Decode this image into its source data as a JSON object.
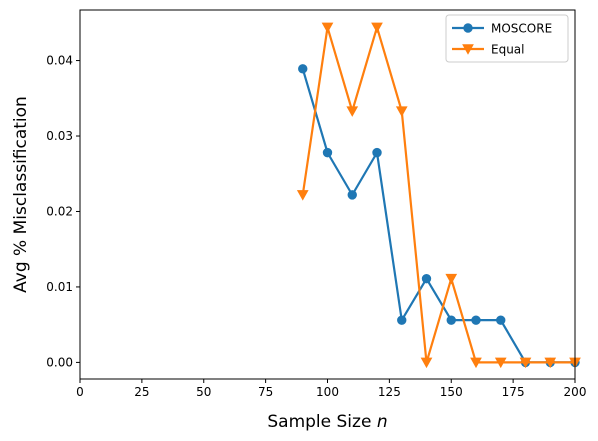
{
  "chart_data": {
    "type": "line",
    "xlabel": "Sample Size",
    "xlabel_italic": "n",
    "ylabel": "Avg % Misclassification",
    "xlim": [
      0,
      200
    ],
    "ylim": [
      -0.0022,
      0.0467
    ],
    "xticks": [
      "0",
      "25",
      "50",
      "75",
      "100",
      "125",
      "150",
      "175",
      "200"
    ],
    "yticks": [
      "0.00",
      "0.01",
      "0.02",
      "0.03",
      "0.04"
    ],
    "grid": false,
    "legend_position": "top-right",
    "series": [
      {
        "name": "MOSCORE",
        "color": "#1f77b4",
        "marker": "circle",
        "x": [
          90,
          100,
          110,
          120,
          130,
          140,
          150,
          160,
          170,
          180,
          190,
          200
        ],
        "values": [
          0.0389,
          0.0278,
          0.0222,
          0.0278,
          0.0056,
          0.0111,
          0.0056,
          0.0056,
          0.0056,
          0.0,
          0.0,
          0.0
        ]
      },
      {
        "name": "Equal",
        "color": "#ff7f0e",
        "marker": "triangle-down",
        "x": [
          90,
          100,
          110,
          120,
          130,
          140,
          150,
          160,
          170,
          180,
          190,
          200
        ],
        "values": [
          0.0222,
          0.0444,
          0.0333,
          0.0444,
          0.0333,
          0.0,
          0.0111,
          0.0,
          0.0,
          0.0,
          0.0,
          0.0
        ]
      }
    ]
  }
}
